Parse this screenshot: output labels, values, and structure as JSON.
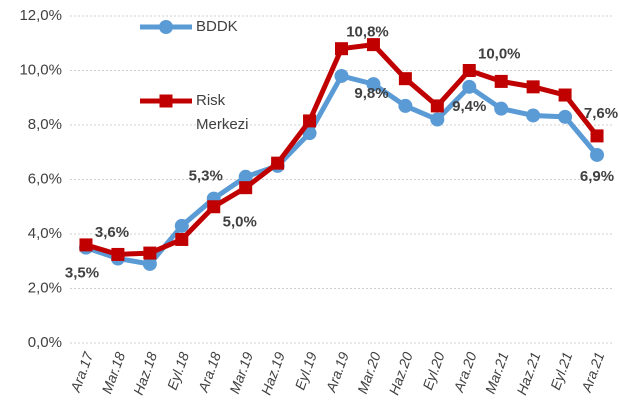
{
  "chart_data": {
    "type": "line",
    "categories": [
      "Ara.17",
      "Mar.18",
      "Haz.18",
      "Eyl.18",
      "Ara.18",
      "Mar.19",
      "Haz.19",
      "Eyl.19",
      "Ara.19",
      "Mar.20",
      "Haz.20",
      "Eyl.20",
      "Ara.20",
      "Mar.21",
      "Haz.21",
      "Eyl.21",
      "Ara.21"
    ],
    "series": [
      {
        "name": "BDDK",
        "color": "#5b9bd5",
        "marker": "circle",
        "values": [
          3.5,
          3.1,
          2.9,
          4.3,
          5.3,
          6.1,
          6.5,
          7.7,
          9.8,
          9.5,
          8.7,
          8.2,
          9.4,
          8.6,
          8.35,
          8.3,
          6.9
        ],
        "value_labels": [
          "3,5%",
          null,
          null,
          null,
          "5,3%",
          null,
          null,
          null,
          "9,8%",
          null,
          null,
          null,
          "9,4%",
          null,
          null,
          null,
          "6,9%"
        ]
      },
      {
        "name": "Risk Merkezi",
        "color": "#c00000",
        "marker": "square",
        "values": [
          3.6,
          3.25,
          3.3,
          3.8,
          5.0,
          5.7,
          6.6,
          8.15,
          10.8,
          10.95,
          9.7,
          8.7,
          10.0,
          9.6,
          9.4,
          9.1,
          7.6
        ],
        "value_labels": [
          "3,6%",
          null,
          null,
          null,
          "5,0%",
          null,
          null,
          null,
          "10,8%",
          null,
          null,
          null,
          "10,0%",
          null,
          null,
          null,
          "7,6%"
        ]
      }
    ],
    "ylim": [
      0,
      12
    ],
    "yticks": [
      {
        "value": 0,
        "label": "0,0%"
      },
      {
        "value": 2,
        "label": "2,0%"
      },
      {
        "value": 4,
        "label": "4,0%"
      },
      {
        "value": 6,
        "label": "6,0%"
      },
      {
        "value": 8,
        "label": "8,0%"
      },
      {
        "value": 10,
        "label": "10,0%"
      },
      {
        "value": 12,
        "label": "12,0%"
      }
    ],
    "grid": true
  }
}
